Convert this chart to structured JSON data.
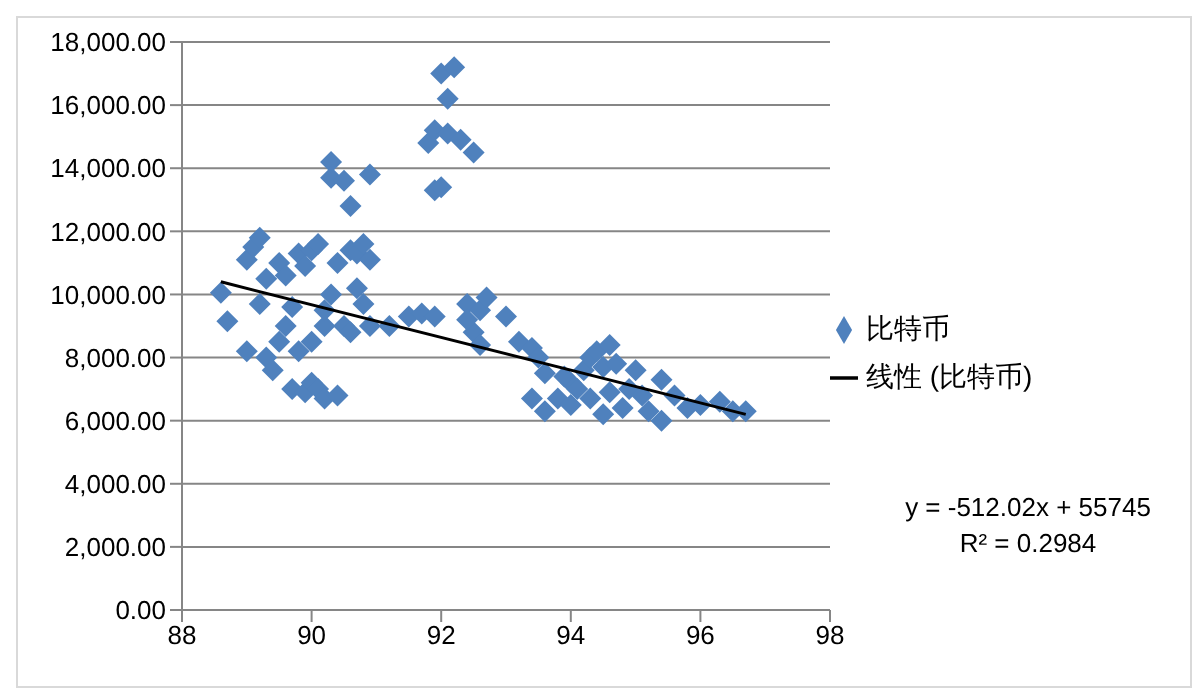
{
  "chart_data": {
    "type": "scatter",
    "xlim": [
      88,
      98
    ],
    "xticks": [
      88,
      90,
      92,
      94,
      96,
      98
    ],
    "ylim": [
      0,
      18000
    ],
    "yticks": [
      {
        "value": 0,
        "label": "0.00"
      },
      {
        "value": 2000,
        "label": "2,000.00"
      },
      {
        "value": 4000,
        "label": "4,000.00"
      },
      {
        "value": 6000,
        "label": "6,000.00"
      },
      {
        "value": 8000,
        "label": "8,000.00"
      },
      {
        "value": 10000,
        "label": "10,000.00"
      },
      {
        "value": 12000,
        "label": "12,000.00"
      },
      {
        "value": 14000,
        "label": "14,000.00"
      },
      {
        "value": 16000,
        "label": "16,000.00"
      },
      {
        "value": 18000,
        "label": "18,000.00"
      }
    ],
    "grid": "y",
    "legend": "right",
    "series": [
      {
        "name": "比特币",
        "marker": "diamond",
        "color": "#4f81bd",
        "x": [
          88.6,
          88.7,
          89.0,
          89.1,
          89.2,
          89.3,
          89.2,
          89.0,
          89.3,
          89.4,
          89.5,
          89.6,
          89.7,
          89.5,
          89.8,
          89.9,
          89.6,
          89.7,
          89.9,
          90.0,
          90.1,
          90.2,
          90.4,
          89.8,
          90.0,
          90.2,
          90.3,
          90.0,
          90.1,
          90.2,
          90.3,
          90.3,
          90.5,
          90.6,
          90.9,
          90.4,
          90.6,
          90.7,
          90.8,
          90.9,
          90.7,
          90.8,
          90.5,
          90.6,
          90.9,
          91.2,
          91.5,
          91.7,
          91.9,
          91.8,
          91.9,
          92.0,
          92.2,
          92.1,
          91.9,
          92.0,
          92.1,
          92.3,
          92.5,
          92.4,
          92.6,
          92.7,
          92.5,
          92.6,
          92.4,
          93.0,
          93.2,
          93.4,
          93.5,
          93.6,
          93.4,
          93.6,
          93.8,
          94.0,
          94.0,
          94.2,
          94.3,
          94.4,
          94.5,
          94.6,
          94.3,
          94.5,
          94.6,
          94.8,
          94.9,
          95.0,
          95.1,
          95.2,
          95.4,
          95.4,
          95.6,
          95.8,
          96.0,
          96.3,
          96.5,
          96.7,
          94.1,
          94.7,
          93.9
        ],
        "values": [
          10050,
          9150,
          11100,
          11500,
          11800,
          10500,
          9700,
          8200,
          8000,
          7600,
          8500,
          9000,
          9600,
          11000,
          11300,
          10900,
          10600,
          7000,
          6900,
          7200,
          7000,
          6700,
          6800,
          8200,
          8500,
          9000,
          10000,
          11400,
          11600,
          9500,
          14200,
          13700,
          13600,
          12800,
          13800,
          11000,
          11400,
          11300,
          11600,
          11100,
          10200,
          9700,
          9000,
          8800,
          9000,
          9000,
          9300,
          9400,
          9300,
          14800,
          15200,
          17000,
          17200,
          16200,
          13300,
          13400,
          15100,
          14900,
          14500,
          9700,
          9500,
          9900,
          8800,
          8400,
          9200,
          9300,
          8500,
          8300,
          8000,
          7500,
          6700,
          6300,
          6700,
          6500,
          7200,
          7600,
          8000,
          8200,
          7700,
          8400,
          6700,
          6200,
          6900,
          6400,
          7000,
          7600,
          6800,
          6300,
          6000,
          7300,
          6800,
          6400,
          6500,
          6600,
          6300,
          6300,
          7000,
          7800,
          7400
        ]
      },
      {
        "name": "线性 (比特币)",
        "type": "line",
        "marker": "none",
        "color": "#000000",
        "x": [
          88.6,
          96.7
        ],
        "values": [
          10400,
          6200
        ]
      }
    ],
    "annotations": [
      "y = -512.02x + 55745",
      "R² = 0.2984"
    ]
  }
}
